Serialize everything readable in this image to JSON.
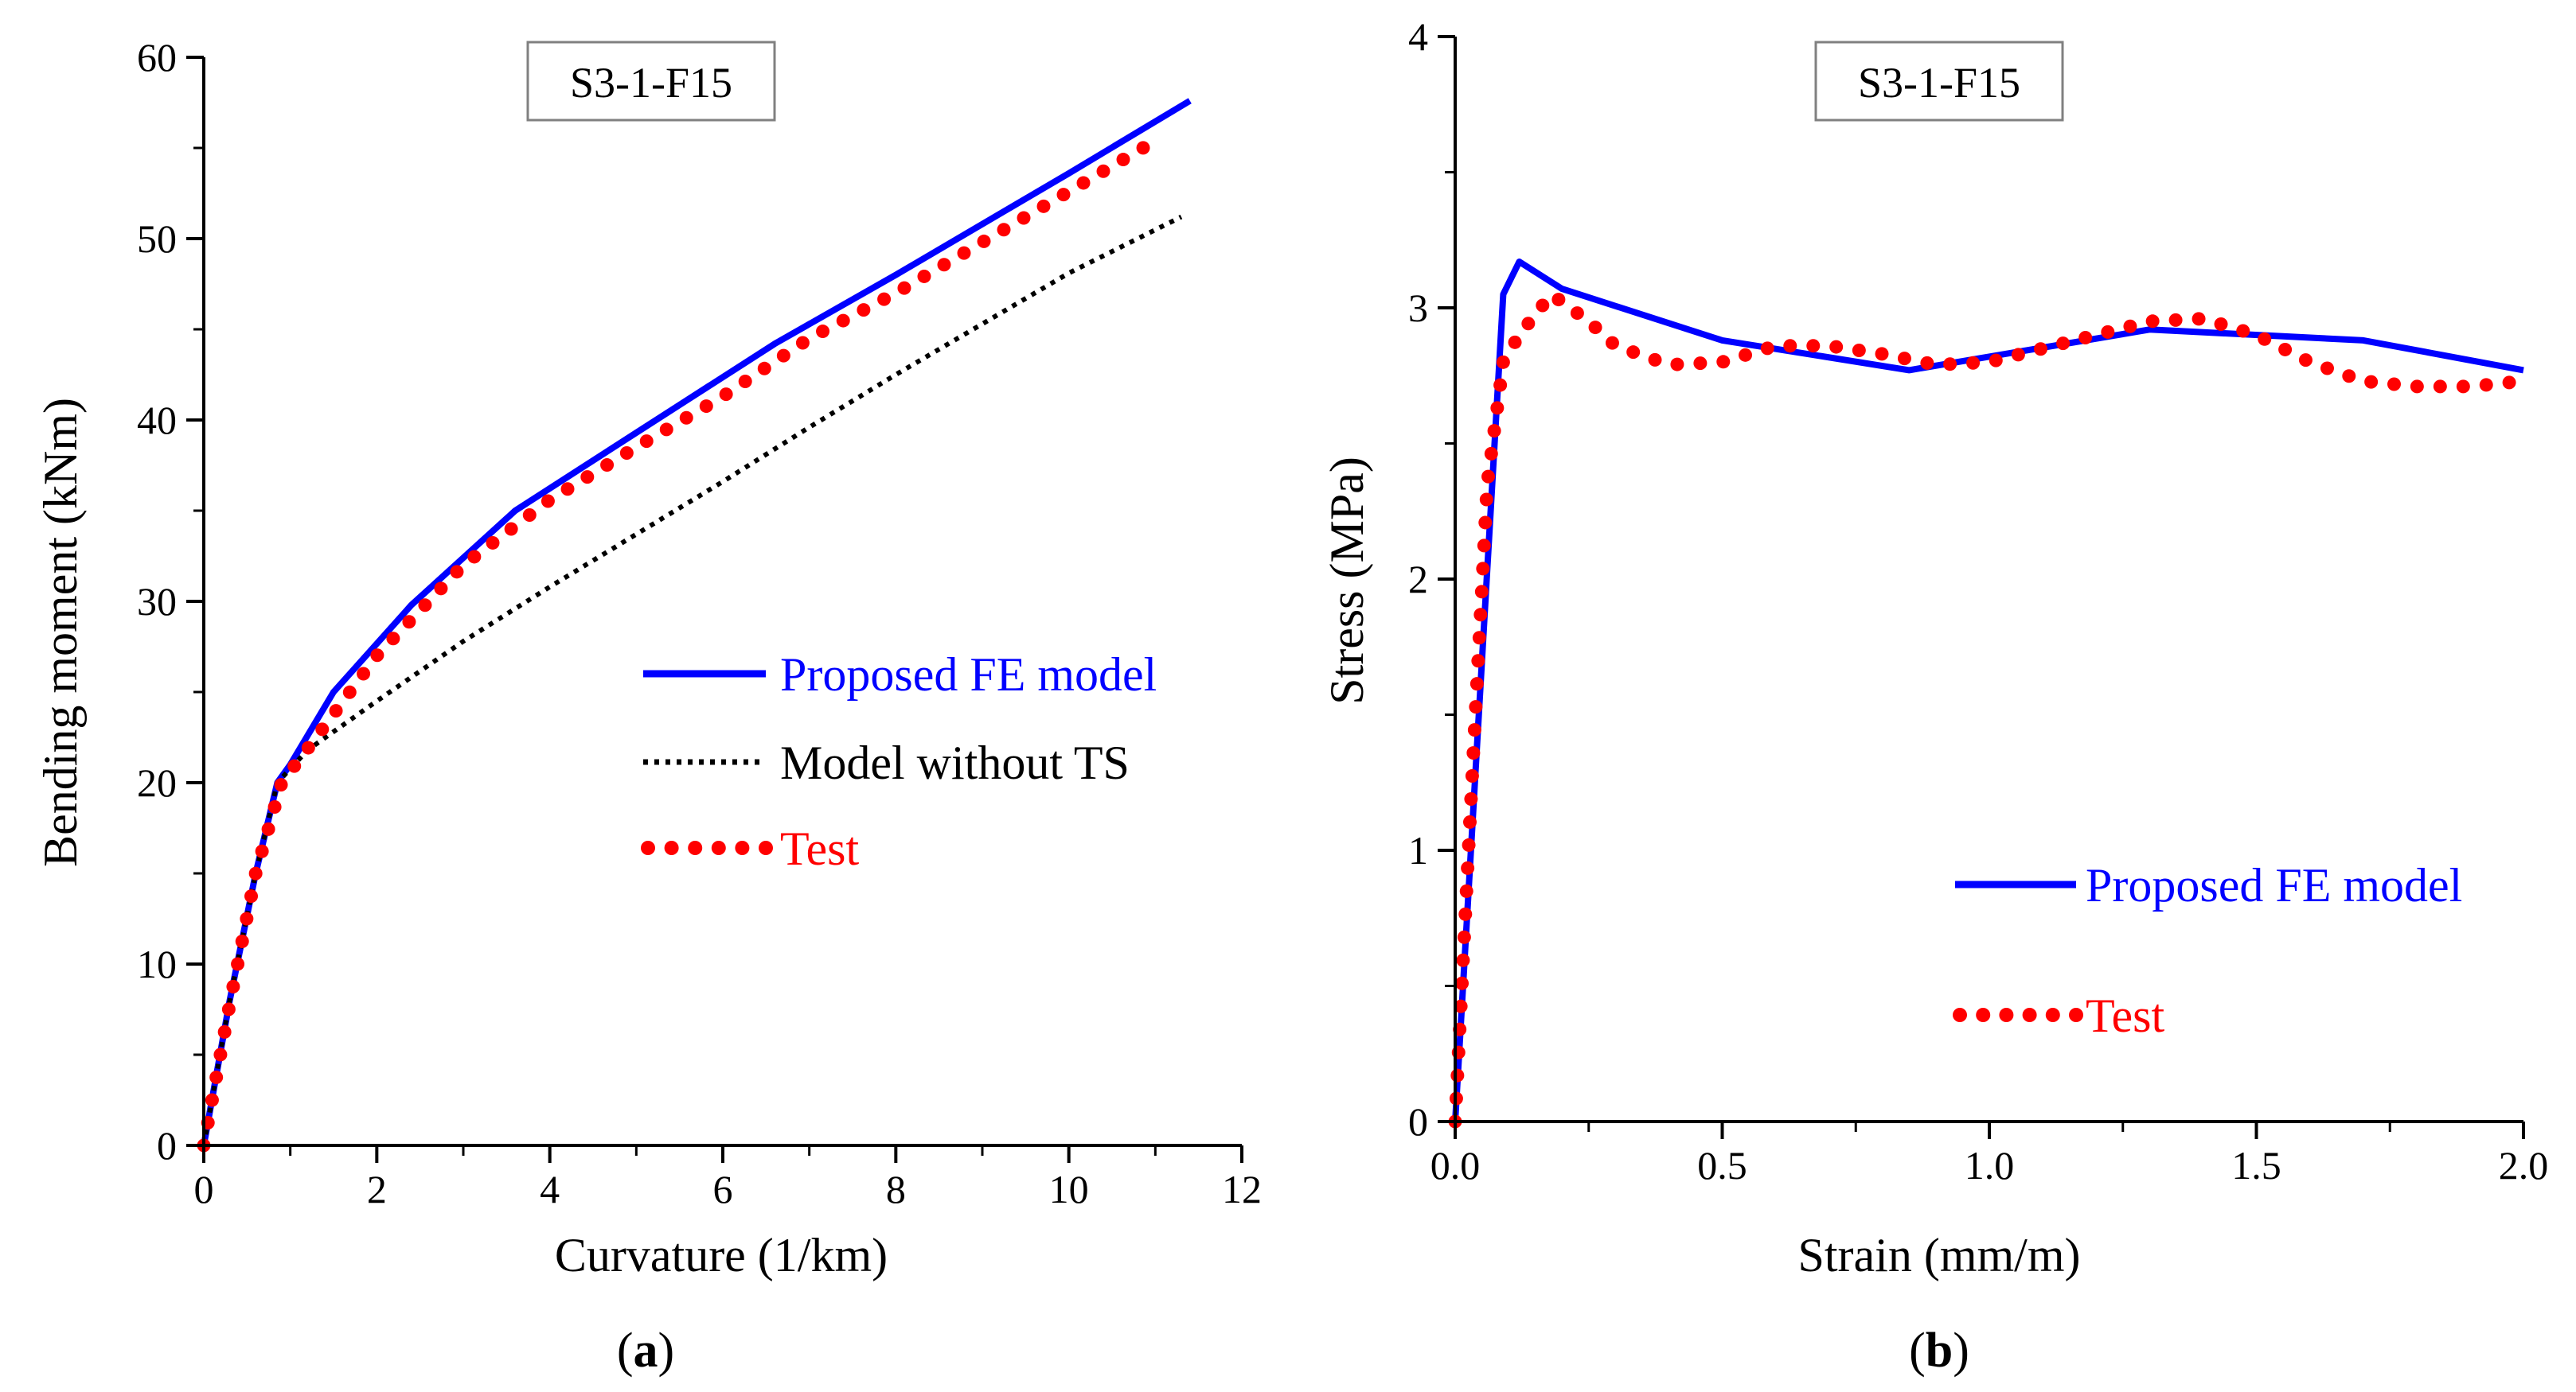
{
  "chart_data": [
    {
      "type": "line",
      "panel_label": "a",
      "title": "S3-1-F15",
      "xlabel": "Curvature (1/km)",
      "ylabel": "Bending moment (kNm)",
      "xlim": [
        0,
        12
      ],
      "ylim": [
        0,
        60
      ],
      "xticks": [
        0,
        2,
        4,
        6,
        8,
        10,
        12
      ],
      "yticks": [
        0,
        10,
        20,
        30,
        40,
        50,
        60
      ],
      "xtick_labels": [
        "0",
        "2",
        "4",
        "6",
        "8",
        "10",
        "12"
      ],
      "ytick_labels": [
        "0",
        "10",
        "20",
        "30",
        "40",
        "50",
        "60"
      ],
      "grid": false,
      "legend_position": "right",
      "series": [
        {
          "name": "Proposed FE model",
          "color": "#0000ff",
          "style": "solid",
          "x": [
            0,
            0.3,
            0.6,
            0.85,
            1.0,
            1.5,
            2.4,
            3.6,
            5.0,
            6.6,
            8.0,
            10.0,
            11.4
          ],
          "y": [
            0,
            8,
            15,
            20,
            21,
            25,
            29.8,
            35,
            39.3,
            44.2,
            48,
            53.6,
            57.6
          ]
        },
        {
          "name": "Model without TS",
          "color": "#000000",
          "style": "dotted",
          "x": [
            0,
            0.3,
            0.6,
            0.85,
            1.2,
            2.0,
            3.0,
            4.0,
            5.0,
            6.0,
            7.0,
            8.0,
            9.0,
            10.0,
            11.3
          ],
          "y": [
            0,
            8,
            15,
            20,
            21.8,
            24.5,
            27.8,
            30.8,
            33.7,
            36.6,
            39.6,
            42.5,
            45.3,
            48.1,
            51.2
          ]
        },
        {
          "name": "Test",
          "color": "#ff0000",
          "style": "dots",
          "x": [
            0,
            0.3,
            0.6,
            0.9,
            1.3,
            2.0,
            3.0,
            4.0,
            5.0,
            6.0,
            7.0,
            8.0,
            9.0,
            10.0,
            11.0
          ],
          "y": [
            0,
            7.8,
            15,
            20,
            22.5,
            27,
            32,
            35.6,
            38.5,
            41.3,
            44.5,
            47,
            49.8,
            52.6,
            55.4
          ]
        }
      ]
    },
    {
      "type": "line",
      "panel_label": "b",
      "title": "S3-1-F15",
      "xlabel": "Strain (mm/m)",
      "ylabel": "Stress (MPa)",
      "xlim": [
        0,
        2
      ],
      "ylim": [
        0,
        4
      ],
      "xticks": [
        0,
        0.5,
        1.0,
        1.5,
        2.0
      ],
      "yticks": [
        0,
        1,
        2,
        3,
        4
      ],
      "xtick_labels": [
        "0.0",
        "0.5",
        "1.0",
        "1.5",
        "2.0"
      ],
      "ytick_labels": [
        "0",
        "1",
        "2",
        "3",
        "4"
      ],
      "grid": false,
      "legend_position": "bottom-right",
      "series": [
        {
          "name": "Proposed FE model",
          "color": "#0000ff",
          "style": "solid",
          "x": [
            0,
            0.09,
            0.12,
            0.2,
            0.5,
            0.85,
            1.3,
            1.7,
            2.0
          ],
          "y": [
            0,
            3.05,
            3.17,
            3.07,
            2.88,
            2.77,
            2.92,
            2.88,
            2.77
          ]
        },
        {
          "name": "Test",
          "color": "#ff0000",
          "style": "dots",
          "x": [
            0,
            0.03,
            0.06,
            0.09,
            0.12,
            0.18,
            0.25,
            0.3,
            0.4,
            0.5,
            0.6,
            0.7,
            0.8,
            0.9,
            1.0,
            1.1,
            1.2,
            1.3,
            1.4,
            1.5,
            1.6,
            1.7,
            1.8,
            1.9,
            2.0
          ],
          "y": [
            0,
            1.2,
            2.35,
            2.8,
            2.9,
            3.05,
            2.95,
            2.86,
            2.79,
            2.8,
            2.86,
            2.86,
            2.83,
            2.79,
            2.8,
            2.85,
            2.9,
            2.95,
            2.96,
            2.9,
            2.8,
            2.73,
            2.71,
            2.71,
            2.73
          ]
        }
      ]
    }
  ]
}
